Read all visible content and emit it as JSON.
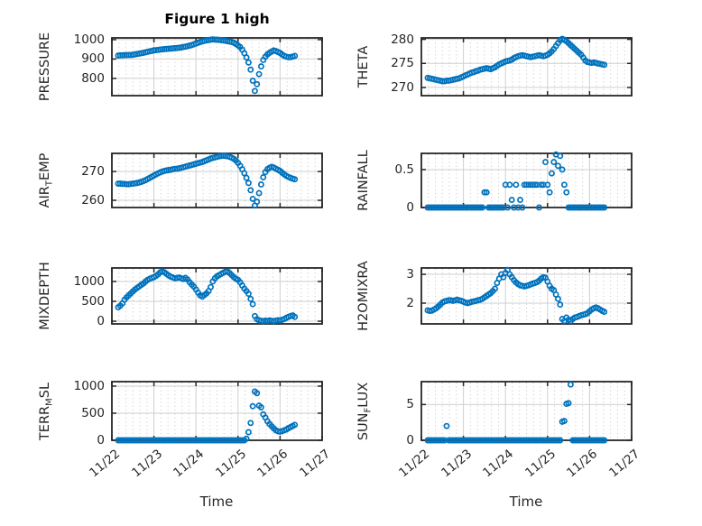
{
  "chart_data": {
    "type": "scatter",
    "figure_title": "Figure 1 high",
    "xlabel": "Time",
    "xlim": [
      22,
      27
    ],
    "xtick_values": [
      22,
      23,
      24,
      25,
      26,
      27
    ],
    "xtick_labels": [
      "11/22",
      "11/23",
      "11/24",
      "11/25",
      "11/26",
      "11/27"
    ],
    "x_unit": "month/day (November)",
    "time": {
      "start": 22.15,
      "step": 0.05,
      "count": 85
    },
    "marker_color": "#0072BD",
    "background_color": "#ffffff",
    "text_color": "#262626",
    "major_grid_color": "#cfcfcf",
    "minor_grid_color": "#c4c4c4",
    "grid": "major solid + minor dotted",
    "legend": "none",
    "subplots": [
      {
        "name": "PRESSURE",
        "row": 0,
        "col": 0,
        "ylabel_parts": [
          {
            "text": "PRESSURE",
            "sub": false
          }
        ],
        "ytick_values": [
          800,
          900,
          1000
        ],
        "ylim": [
          711,
          1009
        ],
        "y": [
          918,
          919,
          919,
          920,
          920,
          921,
          921,
          922,
          924,
          926,
          928,
          930,
          932,
          935,
          937,
          940,
          942,
          945,
          946,
          947,
          949,
          950,
          951,
          952,
          953,
          954,
          955,
          956,
          957,
          958,
          960,
          962,
          964,
          966,
          969,
          972,
          976,
          980,
          984,
          988,
          991,
          994,
          996,
          998,
          1000,
          1001,
          1000,
          1000,
          999,
          997,
          996,
          994,
          992,
          990,
          988,
          984,
          978,
          970,
          962,
          948,
          930,
          908,
          882,
          845,
          788,
          735,
          770,
          822,
          862,
          895,
          912,
          924,
          932,
          939,
          944,
          941,
          936,
          931,
          923,
          916,
          912,
          909,
          910,
          912,
          916
        ]
      },
      {
        "name": "THETA",
        "row": 0,
        "col": 1,
        "ylabel_parts": [
          {
            "text": "THETA",
            "sub": false
          }
        ],
        "ytick_values": [
          270,
          275,
          280
        ],
        "ylim": [
          268.3,
          280.3
        ],
        "y": [
          272.0,
          271.9,
          271.8,
          271.7,
          271.6,
          271.5,
          271.4,
          271.3,
          271.3,
          271.4,
          271.4,
          271.5,
          271.6,
          271.7,
          271.8,
          271.9,
          272.1,
          272.3,
          272.5,
          272.7,
          272.9,
          273.1,
          273.2,
          273.4,
          273.5,
          273.7,
          273.8,
          273.9,
          274.0,
          273.9,
          273.8,
          274.0,
          274.2,
          274.5,
          274.8,
          275.0,
          275.2,
          275.4,
          275.5,
          275.6,
          275.8,
          276.1,
          276.3,
          276.5,
          276.6,
          276.7,
          276.6,
          276.5,
          276.4,
          276.3,
          276.4,
          276.5,
          276.6,
          276.7,
          276.6,
          276.5,
          276.6,
          276.8,
          277.1,
          277.5,
          278.0,
          278.6,
          279.2,
          279.8,
          280.1,
          279.9,
          279.6,
          279.2,
          278.8,
          278.4,
          278.0,
          277.6,
          277.2,
          276.8,
          276.2,
          275.6,
          275.3,
          275.2,
          275.1,
          275.2,
          275.1,
          275.0,
          274.9,
          274.8,
          274.7
        ]
      },
      {
        "name": "AIR_TEMP",
        "row": 1,
        "col": 0,
        "ylabel_parts": [
          {
            "text": "AIR",
            "sub": false
          },
          {
            "text": "T",
            "sub": true
          },
          {
            "text": "EMP",
            "sub": false
          }
        ],
        "ytick_values": [
          260,
          270
        ],
        "ylim": [
          257.5,
          276.3
        ],
        "y": [
          265.8,
          265.8,
          265.7,
          265.7,
          265.6,
          265.6,
          265.7,
          265.8,
          265.9,
          266.0,
          266.2,
          266.4,
          266.7,
          267.0,
          267.4,
          267.8,
          268.2,
          268.6,
          269.0,
          269.4,
          269.7,
          270.0,
          270.2,
          270.4,
          270.5,
          270.6,
          270.8,
          270.9,
          271.0,
          271.1,
          271.3,
          271.5,
          271.7,
          271.9,
          272.1,
          272.3,
          272.5,
          272.7,
          272.9,
          273.1,
          273.3,
          273.6,
          273.9,
          274.2,
          274.5,
          274.7,
          274.9,
          275.1,
          275.3,
          275.4,
          275.5,
          275.4,
          275.3,
          275.1,
          274.8,
          274.4,
          273.8,
          273.0,
          272.0,
          270.8,
          269.4,
          267.8,
          266.0,
          263.5,
          260.5,
          258.2,
          259.5,
          262.5,
          265.5,
          268.0,
          269.8,
          270.8,
          271.3,
          271.6,
          271.4,
          271.0,
          270.6,
          270.2,
          269.6,
          269.0,
          268.5,
          268.1,
          267.8,
          267.5,
          267.3
        ]
      },
      {
        "name": "RAINFALL",
        "row": 1,
        "col": 1,
        "ylabel_parts": [
          {
            "text": "RAINFALL",
            "sub": false
          }
        ],
        "ytick_values": [
          0,
          0.5
        ],
        "ylim": [
          0,
          0.714
        ],
        "y": [
          0,
          0,
          0,
          0,
          0,
          0,
          0,
          0,
          0,
          0,
          0,
          0,
          0,
          0,
          0,
          0,
          0,
          0,
          0,
          0,
          0,
          0,
          0,
          0,
          0,
          0,
          0,
          0.2,
          0.2,
          0,
          0,
          0,
          0,
          0,
          0,
          0,
          0,
          0.3,
          0,
          0.3,
          0.1,
          0,
          0.3,
          0,
          0.1,
          0,
          0.3,
          0.3,
          0.3,
          0.3,
          0.3,
          0.3,
          0.3,
          0,
          0.3,
          0.3,
          0.6,
          0.3,
          0.2,
          0.45,
          0.6,
          0.7,
          0.55,
          0.68,
          0.5,
          0.3,
          0.2,
          0,
          0,
          0,
          0,
          0,
          0,
          0,
          0,
          0,
          0,
          0,
          0,
          0,
          0,
          0,
          0,
          0,
          0
        ]
      },
      {
        "name": "MIXDEPTH",
        "row": 2,
        "col": 0,
        "ylabel_parts": [
          {
            "text": "MIXDEPTH",
            "sub": false
          }
        ],
        "ytick_values": [
          0,
          500,
          1000
        ],
        "ylim": [
          -68,
          1340
        ],
        "y": [
          350,
          390,
          450,
          540,
          600,
          650,
          700,
          750,
          800,
          840,
          875,
          915,
          950,
          1000,
          1040,
          1070,
          1090,
          1110,
          1140,
          1180,
          1230,
          1255,
          1230,
          1190,
          1150,
          1120,
          1100,
          1080,
          1090,
          1100,
          1080,
          1060,
          1090,
          1050,
          980,
          920,
          870,
          800,
          720,
          650,
          620,
          660,
          700,
          760,
          860,
          1000,
          1080,
          1130,
          1160,
          1190,
          1220,
          1245,
          1250,
          1210,
          1160,
          1110,
          1070,
          1040,
          980,
          900,
          820,
          760,
          690,
          560,
          430,
          130,
          50,
          20,
          10,
          0,
          15,
          5,
          20,
          10,
          0,
          15,
          25,
          20,
          35,
          55,
          85,
          110,
          130,
          145,
          110
        ]
      },
      {
        "name": "H2OMIXRA",
        "row": 2,
        "col": 1,
        "ylabel_parts": [
          {
            "text": "H2OMIXRA",
            "sub": false
          }
        ],
        "ytick_values": [
          2,
          3
        ],
        "ylim": [
          1.28,
          3.22
        ],
        "y": [
          1.75,
          1.73,
          1.74,
          1.78,
          1.82,
          1.88,
          1.95,
          2.02,
          2.06,
          2.08,
          2.1,
          2.1,
          2.08,
          2.1,
          2.12,
          2.1,
          2.08,
          2.05,
          2.02,
          2.0,
          2.02,
          2.05,
          2.06,
          2.08,
          2.1,
          2.12,
          2.15,
          2.2,
          2.25,
          2.3,
          2.35,
          2.42,
          2.5,
          2.7,
          2.85,
          3.0,
          2.9,
          3.05,
          3.15,
          3.0,
          2.9,
          2.8,
          2.72,
          2.66,
          2.62,
          2.6,
          2.58,
          2.6,
          2.62,
          2.65,
          2.68,
          2.7,
          2.73,
          2.78,
          2.85,
          2.9,
          2.88,
          2.75,
          2.6,
          2.5,
          2.45,
          2.3,
          2.15,
          1.95,
          1.45,
          1.38,
          1.5,
          1.42,
          1.38,
          1.45,
          1.5,
          1.52,
          1.55,
          1.58,
          1.6,
          1.62,
          1.65,
          1.72,
          1.78,
          1.82,
          1.85,
          1.82,
          1.78,
          1.73,
          1.7
        ]
      },
      {
        "name": "TERR_MSL",
        "row": 3,
        "col": 0,
        "ylabel_parts": [
          {
            "text": "TERR",
            "sub": false
          },
          {
            "text": "M",
            "sub": true
          },
          {
            "text": "SL",
            "sub": false
          }
        ],
        "ytick_values": [
          0,
          500,
          1000
        ],
        "ylim": [
          0,
          1083
        ],
        "y": [
          0,
          0,
          0,
          0,
          0,
          0,
          0,
          0,
          0,
          0,
          0,
          0,
          0,
          0,
          0,
          0,
          0,
          0,
          0,
          0,
          0,
          0,
          0,
          0,
          0,
          0,
          0,
          0,
          0,
          0,
          0,
          0,
          0,
          0,
          0,
          0,
          0,
          0,
          0,
          0,
          0,
          0,
          0,
          0,
          0,
          0,
          0,
          0,
          0,
          0,
          0,
          0,
          0,
          0,
          0,
          0,
          0,
          0,
          0,
          0,
          0,
          30,
          150,
          320,
          630,
          900,
          870,
          640,
          610,
          480,
          420,
          350,
          300,
          260,
          220,
          185,
          165,
          160,
          170,
          185,
          200,
          225,
          245,
          265,
          285
        ]
      },
      {
        "name": "SUN_FLUX",
        "row": 3,
        "col": 1,
        "ylabel_parts": [
          {
            "text": "SUN",
            "sub": false
          },
          {
            "text": "F",
            "sub": true
          },
          {
            "text": "LUX",
            "sub": false
          }
        ],
        "ytick_values": [
          0,
          5
        ],
        "ylim": [
          0,
          8.2
        ],
        "y": [
          0,
          0,
          0,
          0,
          0,
          0,
          0,
          0,
          0,
          2,
          0,
          0,
          0,
          0,
          0,
          0,
          0,
          0,
          0,
          0,
          0,
          0,
          0,
          0,
          0,
          0,
          0,
          0,
          0,
          0,
          0,
          0,
          0,
          0,
          0,
          0,
          0,
          0,
          0,
          0,
          0,
          0,
          0,
          0,
          0,
          0,
          0,
          0,
          0,
          0,
          0,
          0,
          0,
          0,
          0,
          0,
          0,
          0,
          0,
          0,
          0,
          0,
          0,
          0,
          2.6,
          2.7,
          5.1,
          5.2,
          7.8,
          0,
          0,
          0,
          0,
          0,
          0,
          0,
          0,
          0,
          0,
          0,
          0,
          0,
          0,
          0,
          0
        ]
      }
    ]
  }
}
